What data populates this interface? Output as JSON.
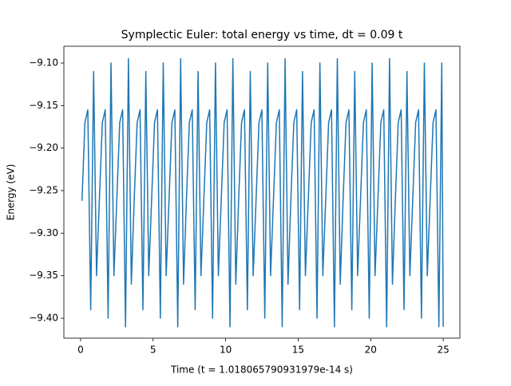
{
  "chart_data": {
    "type": "line",
    "title": "Symplectic Euler: total energy vs time, dt = 0.09 t",
    "x_label": "Time (t = 1.018065790931979e-14 s)",
    "y_label": "Energy (eV)",
    "x": [
      0.1,
      0.3,
      0.5,
      0.7,
      0.9,
      1.1,
      1.3,
      1.5,
      1.7,
      1.9,
      2.1,
      2.3,
      2.5,
      2.7,
      2.9,
      3.1,
      3.3,
      3.5,
      3.7,
      3.9,
      4.1,
      4.3,
      4.5,
      4.7,
      4.9,
      5.1,
      5.3,
      5.5,
      5.7,
      5.9,
      6.1,
      6.3,
      6.5,
      6.7,
      6.9,
      7.1,
      7.3,
      7.5,
      7.7,
      7.9,
      8.1,
      8.3,
      8.5,
      8.7,
      8.9,
      9.1,
      9.3,
      9.5,
      9.7,
      9.9,
      10.1,
      10.3,
      10.5,
      10.7,
      10.9,
      11.1,
      11.3,
      11.5,
      11.7,
      11.9,
      12.1,
      12.3,
      12.5,
      12.7,
      12.9,
      13.1,
      13.3,
      13.5,
      13.7,
      13.9,
      14.1,
      14.3,
      14.5,
      14.7,
      14.9,
      15.1,
      15.3,
      15.5,
      15.7,
      15.9,
      16.1,
      16.3,
      16.5,
      16.7,
      16.9,
      17.1,
      17.3,
      17.5,
      17.7,
      17.9,
      18.1,
      18.3,
      18.5,
      18.7,
      18.9,
      19.1,
      19.3,
      19.5,
      19.7,
      19.9,
      20.1,
      20.3,
      20.5,
      20.7,
      20.9,
      21.1,
      21.3,
      21.5,
      21.7,
      21.9,
      22.1,
      22.3,
      22.5,
      22.7,
      22.9,
      23.1,
      23.3,
      23.5,
      23.7,
      23.9,
      24.1,
      24.3,
      24.5,
      24.7,
      24.9,
      25.0
    ],
    "series": [
      {
        "name": "Energy",
        "color": "#1f77b4",
        "values": [
          -9.262,
          -9.17,
          -9.155,
          -9.39,
          -9.11,
          -9.35,
          -9.26,
          -9.17,
          -9.155,
          -9.4,
          -9.1,
          -9.35,
          -9.26,
          -9.17,
          -9.155,
          -9.41,
          -9.095,
          -9.36,
          -9.26,
          -9.17,
          -9.155,
          -9.39,
          -9.11,
          -9.35,
          -9.26,
          -9.17,
          -9.155,
          -9.4,
          -9.1,
          -9.35,
          -9.26,
          -9.17,
          -9.155,
          -9.41,
          -9.095,
          -9.36,
          -9.26,
          -9.17,
          -9.155,
          -9.39,
          -9.11,
          -9.35,
          -9.26,
          -9.17,
          -9.155,
          -9.4,
          -9.1,
          -9.35,
          -9.26,
          -9.17,
          -9.155,
          -9.41,
          -9.095,
          -9.36,
          -9.26,
          -9.17,
          -9.155,
          -9.39,
          -9.11,
          -9.35,
          -9.26,
          -9.17,
          -9.155,
          -9.4,
          -9.1,
          -9.35,
          -9.26,
          -9.17,
          -9.155,
          -9.41,
          -9.095,
          -9.36,
          -9.26,
          -9.17,
          -9.155,
          -9.39,
          -9.11,
          -9.35,
          -9.26,
          -9.17,
          -9.155,
          -9.4,
          -9.1,
          -9.35,
          -9.26,
          -9.17,
          -9.155,
          -9.41,
          -9.095,
          -9.36,
          -9.26,
          -9.17,
          -9.155,
          -9.39,
          -9.11,
          -9.35,
          -9.26,
          -9.17,
          -9.155,
          -9.4,
          -9.1,
          -9.35,
          -9.26,
          -9.17,
          -9.155,
          -9.41,
          -9.095,
          -9.36,
          -9.26,
          -9.17,
          -9.155,
          -9.39,
          -9.11,
          -9.35,
          -9.26,
          -9.17,
          -9.155,
          -9.4,
          -9.1,
          -9.35,
          -9.26,
          -9.17,
          -9.155,
          -9.41,
          -9.1,
          -9.41
        ]
      }
    ],
    "xlim": [
      -1.15,
      26.15
    ],
    "ylim": [
      -9.4234,
      -9.0803
    ],
    "xticks": [
      0,
      5,
      10,
      15,
      20,
      25
    ],
    "yticks": [
      {
        "value": -9.4,
        "label": "−9.40"
      },
      {
        "value": -9.35,
        "label": "−9.35"
      },
      {
        "value": -9.3,
        "label": "−9.30"
      },
      {
        "value": -9.25,
        "label": "−9.25"
      },
      {
        "value": -9.2,
        "label": "−9.20"
      },
      {
        "value": -9.15,
        "label": "−9.15"
      },
      {
        "value": -9.1,
        "label": "−9.10"
      }
    ],
    "grid": false
  }
}
